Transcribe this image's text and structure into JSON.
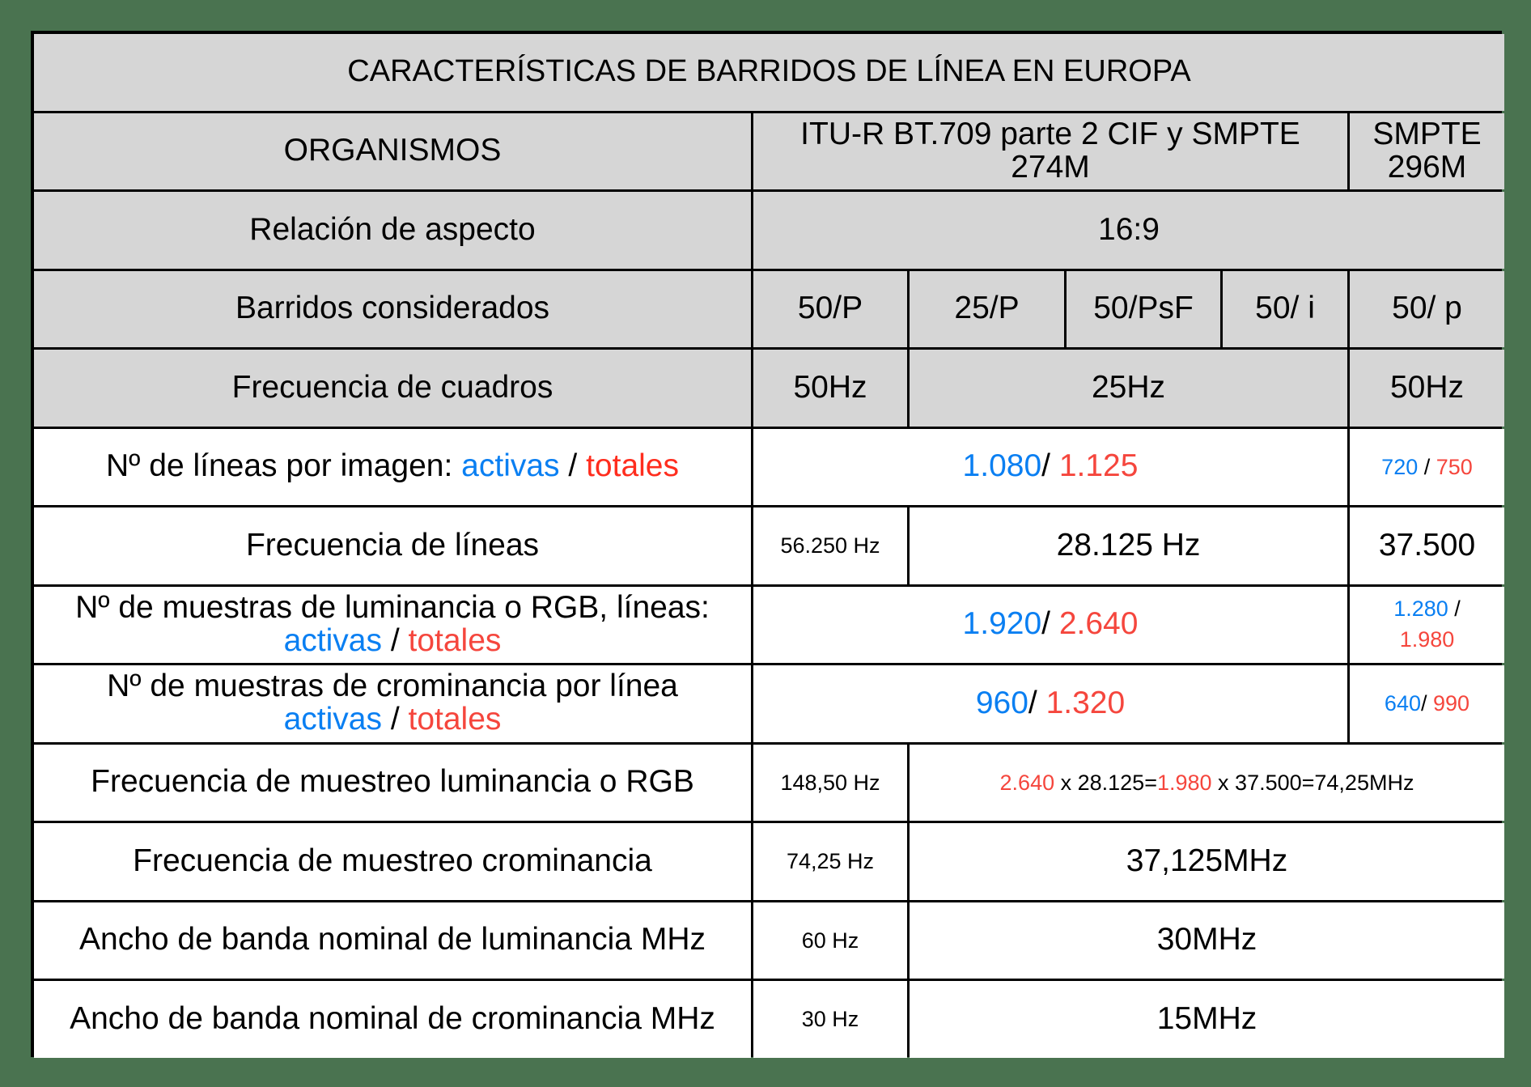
{
  "table": {
    "title": "CARACTERÍSTICAS DE BARRIDOS DE LÍNEA EN EUROPA",
    "colors": {
      "background": "#4a7350",
      "header_fill": "#d6d6d6",
      "body_fill": "#ffffff",
      "activas": "#0a7ff2",
      "totales": "#f5463d",
      "border": "#000000"
    },
    "organismos": {
      "label": "ORGANISMOS",
      "itu_line1": "ITU-R BT.709 parte 2 CIF y SMPTE",
      "itu_line2": "274M",
      "smpte_line1": "SMPTE",
      "smpte_line2": "296M"
    },
    "aspecto": {
      "label": "Relación de aspecto",
      "value": "16:9"
    },
    "barridos": {
      "label": "Barridos considerados",
      "values": [
        "50/P",
        "25/P",
        "50/PsF",
        "50/ i",
        "50/ p"
      ]
    },
    "cuadros": {
      "label": "Frecuencia de cuadros",
      "values": [
        "50Hz",
        "25Hz",
        "50Hz"
      ]
    },
    "lineas_imagen": {
      "label_prefix": "Nº de líneas por imagen: ",
      "label_activas": "activas",
      "label_sep": " / ",
      "label_totales": "totales",
      "itu_activas": "1.080",
      "itu_sep": "/ ",
      "itu_totales": "1.125",
      "smpte_activas": "720",
      "smpte_sep": " / ",
      "smpte_totales": "750"
    },
    "frecuencia_lineas": {
      "label": "Frecuencia de líneas",
      "v1": "56.250 Hz",
      "v2": "28.125 Hz",
      "v3": "37.500"
    },
    "muestras_luminancia": {
      "label_line1": "Nº de muestras de luminancia o RGB, líneas:",
      "label_activas": "activas",
      "label_sep": " / ",
      "label_totales": "totales",
      "itu_activas": "1.920",
      "itu_sep": "/ ",
      "itu_totales": "2.640",
      "smpte_activas": "1.280",
      "smpte_sep": " /",
      "smpte_totales": "1.980"
    },
    "muestras_crominancia": {
      "label_line1": "Nº de muestras de crominancia por línea",
      "label_activas": "activas",
      "label_sep": " / ",
      "label_totales": "totales",
      "itu_activas": "960",
      "itu_sep": "/ ",
      "itu_totales": "1.320",
      "smpte_activas": "640",
      "smpte_sep": "/ ",
      "smpte_totales": "990"
    },
    "muestreo_luminancia": {
      "label": "Frecuencia de muestreo luminancia o RGB",
      "v1": "148,50 Hz",
      "f_a": "2.640",
      "f_b": " x 28.125=",
      "f_c": "1.980",
      "f_d": " x 37.500=74,25MHz"
    },
    "muestreo_crominancia": {
      "label": "Frecuencia de muestreo crominancia",
      "v1": "74,25 Hz",
      "v2": "37,125MHz"
    },
    "banda_luminancia": {
      "label": "Ancho de banda nominal de luminancia MHz",
      "v1": "60 Hz",
      "v2": "30MHz"
    },
    "banda_crominancia": {
      "label": "Ancho de banda nominal de crominancia MHz",
      "v1": "30 Hz",
      "v2": "15MHz"
    }
  }
}
